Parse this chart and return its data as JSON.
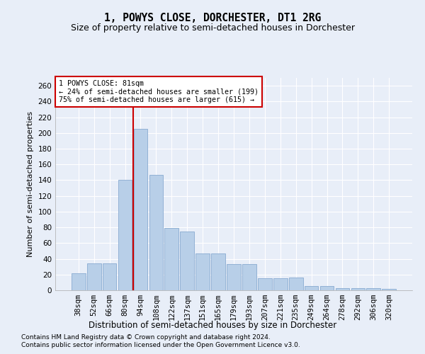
{
  "title": "1, POWYS CLOSE, DORCHESTER, DT1 2RG",
  "subtitle": "Size of property relative to semi-detached houses in Dorchester",
  "xlabel": "Distribution of semi-detached houses by size in Dorchester",
  "ylabel": "Number of semi-detached properties",
  "footer1": "Contains HM Land Registry data © Crown copyright and database right 2024.",
  "footer2": "Contains public sector information licensed under the Open Government Licence v3.0.",
  "categories": [
    "38sqm",
    "52sqm",
    "66sqm",
    "80sqm",
    "94sqm",
    "108sqm",
    "122sqm",
    "137sqm",
    "151sqm",
    "165sqm",
    "179sqm",
    "193sqm",
    "207sqm",
    "221sqm",
    "235sqm",
    "249sqm",
    "264sqm",
    "278sqm",
    "292sqm",
    "306sqm",
    "320sqm"
  ],
  "values": [
    22,
    34,
    34,
    140,
    205,
    147,
    79,
    75,
    47,
    47,
    33,
    33,
    15,
    15,
    16,
    5,
    5,
    3,
    3,
    3,
    2
  ],
  "bar_color": "#b8cfe8",
  "bar_edge_color": "#88aad0",
  "vline_x": 3.5,
  "vline_color": "#cc0000",
  "annotation_title": "1 POWYS CLOSE: 81sqm",
  "annotation_line1": "← 24% of semi-detached houses are smaller (199)",
  "annotation_line2": "75% of semi-detached houses are larger (615) →",
  "annotation_box_facecolor": "white",
  "annotation_box_edgecolor": "#cc0000",
  "ylim": [
    0,
    270
  ],
  "yticks": [
    0,
    20,
    40,
    60,
    80,
    100,
    120,
    140,
    160,
    180,
    200,
    220,
    240,
    260
  ],
  "bg_color": "#e8eef8",
  "plot_bg_color": "#e8eef8",
  "title_fontsize": 10.5,
  "subtitle_fontsize": 9,
  "axis_label_fontsize": 8,
  "tick_fontsize": 7.5,
  "bar_width": 0.9,
  "footer_fontsize": 6.5
}
